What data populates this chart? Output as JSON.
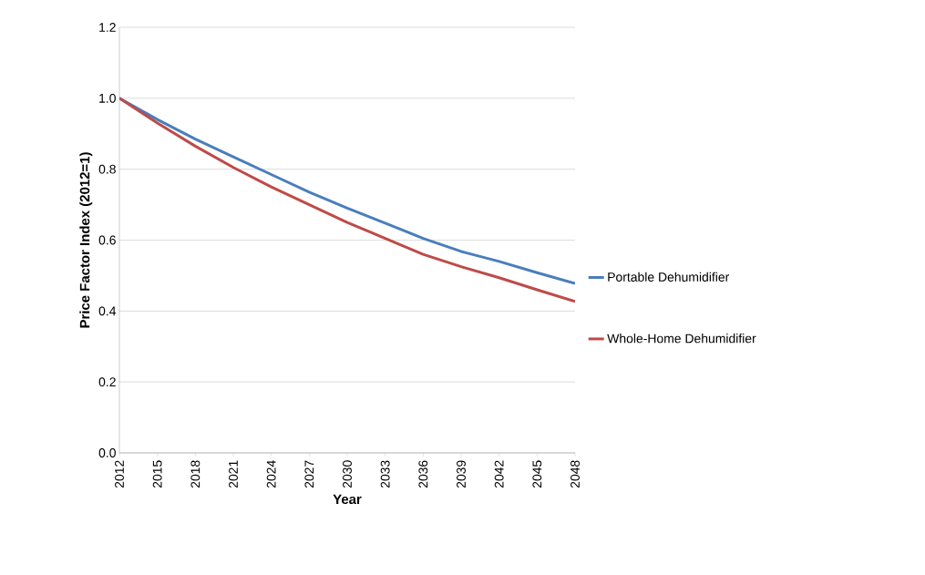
{
  "chart_data": {
    "type": "line",
    "xlabel": "Year",
    "ylabel": "Price Factor Index (2012=1)",
    "x": [
      2012,
      2015,
      2018,
      2021,
      2024,
      2027,
      2030,
      2033,
      2036,
      2039,
      2042,
      2045,
      2048
    ],
    "series": [
      {
        "name": "Portable Dehumidifier",
        "color": "#4a7ebb",
        "values": [
          1.0,
          0.94,
          0.885,
          0.835,
          0.785,
          0.735,
          0.69,
          0.648,
          0.605,
          0.568,
          0.54,
          0.508,
          0.478
        ]
      },
      {
        "name": "Whole-Home Dehumidifier",
        "color": "#be4b48",
        "values": [
          1.0,
          0.93,
          0.865,
          0.805,
          0.75,
          0.7,
          0.65,
          0.605,
          0.56,
          0.525,
          0.494,
          0.46,
          0.427
        ]
      }
    ],
    "xlim": [
      2012,
      2048
    ],
    "xticks": [
      2012,
      2015,
      2018,
      2021,
      2024,
      2027,
      2030,
      2033,
      2036,
      2039,
      2042,
      2045,
      2048
    ],
    "ylim": [
      0,
      1.2
    ],
    "yticks": [
      {
        "value": 0,
        "label": "0.0"
      },
      {
        "value": 0.2,
        "label": "0.2"
      },
      {
        "value": 0.4,
        "label": "0.4"
      },
      {
        "value": 0.6,
        "label": "0.6"
      },
      {
        "value": 0.8,
        "label": "0.8"
      },
      {
        "value": 1.0,
        "label": "1.0"
      },
      {
        "value": 1.2,
        "label": "1.2"
      }
    ],
    "grid": "y",
    "legend": "right",
    "marker": "none",
    "line_style": "solid"
  }
}
